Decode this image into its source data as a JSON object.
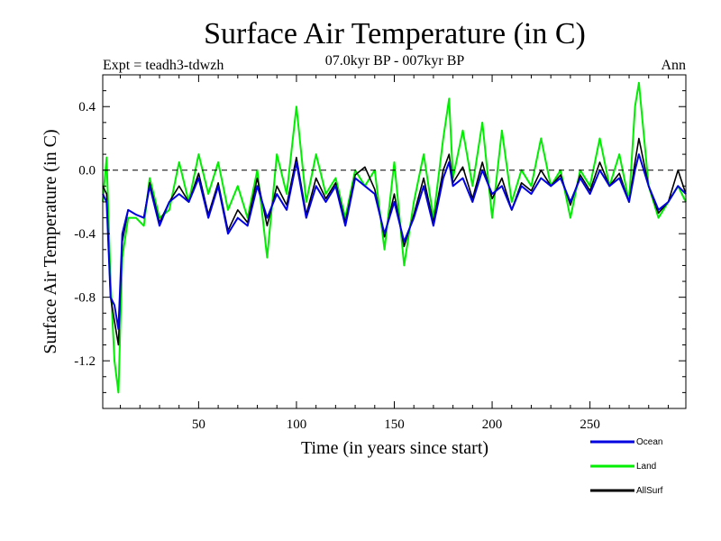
{
  "chart_data": {
    "type": "line",
    "title": "Surface Air Temperature (in C)",
    "subtitle": "07.0kyr BP - 007kyr BP",
    "experiment": "Expt = teadh3-tdwzh",
    "season": "Ann",
    "xlabel": "Time (in years since start)",
    "ylabel": "Surface Air Temperature (in C)",
    "xlim": [
      1,
      299
    ],
    "ylim": [
      -1.5,
      0.6
    ],
    "xticks": [
      50,
      100,
      150,
      200,
      250
    ],
    "yticks": [
      0.4,
      0.0,
      -0.4,
      -0.8,
      -1.2
    ],
    "ytick_labels": [
      "0.4",
      "0.0",
      "-0.4",
      "-0.8",
      "-1.2"
    ],
    "reference_line": 0.0,
    "colors": {
      "ocean": "#0000e0",
      "land": "#00ee00",
      "allsurf": "#000000"
    },
    "series": [
      {
        "name": "Land",
        "color": "#00ee00",
        "x": [
          1,
          3,
          5,
          7,
          9,
          11,
          14,
          18,
          22,
          25,
          30,
          35,
          40,
          45,
          50,
          55,
          60,
          65,
          70,
          75,
          80,
          85,
          90,
          95,
          100,
          105,
          110,
          115,
          120,
          125,
          130,
          135,
          140,
          145,
          150,
          155,
          160,
          165,
          170,
          175,
          178,
          180,
          185,
          190,
          195,
          200,
          205,
          210,
          215,
          220,
          225,
          230,
          235,
          240,
          245,
          250,
          255,
          260,
          265,
          270,
          273,
          275,
          280,
          285,
          290,
          295,
          299
        ],
        "values": [
          -0.2,
          0.08,
          -0.7,
          -1.2,
          -1.4,
          -0.55,
          -0.3,
          -0.3,
          -0.35,
          -0.05,
          -0.3,
          -0.25,
          0.05,
          -0.2,
          0.1,
          -0.15,
          0.05,
          -0.25,
          -0.1,
          -0.3,
          0.0,
          -0.55,
          0.1,
          -0.15,
          0.4,
          -0.2,
          0.1,
          -0.15,
          -0.05,
          -0.3,
          0.0,
          -0.1,
          0.0,
          -0.5,
          0.05,
          -0.6,
          -0.2,
          0.1,
          -0.3,
          0.2,
          0.45,
          -0.05,
          0.25,
          -0.1,
          0.3,
          -0.3,
          0.25,
          -0.2,
          0.0,
          -0.1,
          0.2,
          -0.1,
          0.0,
          -0.3,
          0.0,
          -0.1,
          0.2,
          -0.1,
          0.1,
          -0.2,
          0.4,
          0.55,
          -0.1,
          -0.3,
          -0.2,
          -0.1,
          -0.2
        ]
      },
      {
        "name": "Ocean",
        "color": "#0000e0",
        "x": [
          1,
          3,
          5,
          7,
          9,
          11,
          14,
          18,
          22,
          25,
          30,
          35,
          40,
          45,
          50,
          55,
          60,
          65,
          70,
          75,
          80,
          85,
          90,
          95,
          100,
          105,
          110,
          115,
          120,
          125,
          130,
          135,
          140,
          145,
          150,
          155,
          160,
          165,
          170,
          175,
          178,
          180,
          185,
          190,
          195,
          200,
          205,
          210,
          215,
          220,
          225,
          230,
          235,
          240,
          245,
          250,
          255,
          260,
          265,
          270,
          273,
          275,
          280,
          285,
          290,
          295,
          299
        ],
        "values": [
          -0.15,
          -0.2,
          -0.8,
          -0.85,
          -1.0,
          -0.4,
          -0.25,
          -0.28,
          -0.3,
          -0.1,
          -0.35,
          -0.2,
          -0.15,
          -0.2,
          -0.05,
          -0.3,
          -0.1,
          -0.4,
          -0.3,
          -0.35,
          -0.1,
          -0.3,
          -0.15,
          -0.25,
          0.05,
          -0.3,
          -0.1,
          -0.2,
          -0.1,
          -0.35,
          -0.05,
          -0.1,
          -0.15,
          -0.4,
          -0.2,
          -0.45,
          -0.3,
          -0.1,
          -0.35,
          -0.05,
          0.05,
          -0.1,
          -0.05,
          -0.2,
          0.0,
          -0.15,
          -0.1,
          -0.25,
          -0.1,
          -0.15,
          -0.05,
          -0.1,
          -0.05,
          -0.2,
          -0.05,
          -0.15,
          0.0,
          -0.1,
          -0.05,
          -0.2,
          0.0,
          0.1,
          -0.1,
          -0.25,
          -0.2,
          -0.1,
          -0.15
        ]
      },
      {
        "name": "AllSurf",
        "color": "#000000",
        "x": [
          1,
          3,
          5,
          7,
          9,
          11,
          14,
          18,
          22,
          25,
          30,
          35,
          40,
          45,
          50,
          55,
          60,
          65,
          70,
          75,
          80,
          85,
          90,
          95,
          100,
          105,
          110,
          115,
          120,
          125,
          130,
          135,
          140,
          145,
          150,
          155,
          160,
          165,
          170,
          175,
          178,
          180,
          185,
          190,
          195,
          200,
          205,
          210,
          215,
          220,
          225,
          230,
          235,
          240,
          245,
          250,
          255,
          260,
          265,
          270,
          273,
          275,
          280,
          285,
          290,
          295,
          299
        ],
        "values": [
          -0.1,
          -0.15,
          -0.8,
          -0.95,
          -1.1,
          -0.45,
          -0.25,
          -0.28,
          -0.3,
          -0.08,
          -0.33,
          -0.2,
          -0.1,
          -0.2,
          -0.02,
          -0.28,
          -0.08,
          -0.38,
          -0.25,
          -0.33,
          -0.05,
          -0.35,
          -0.1,
          -0.22,
          0.08,
          -0.28,
          -0.05,
          -0.18,
          -0.08,
          -0.33,
          -0.03,
          0.02,
          -0.12,
          -0.42,
          -0.15,
          -0.48,
          -0.28,
          -0.05,
          -0.33,
          0.0,
          0.1,
          -0.08,
          0.02,
          -0.18,
          0.05,
          -0.18,
          -0.05,
          -0.25,
          -0.08,
          -0.13,
          0.0,
          -0.1,
          -0.03,
          -0.22,
          -0.03,
          -0.13,
          0.05,
          -0.1,
          -0.02,
          -0.2,
          0.05,
          0.2,
          -0.1,
          -0.27,
          -0.2,
          0.0,
          -0.15
        ]
      }
    ]
  },
  "legend": [
    {
      "label": "Ocean",
      "color": "#0000e0"
    },
    {
      "label": "Land",
      "color": "#00ee00"
    },
    {
      "label": "AllSurf",
      "color": "#000000"
    }
  ]
}
